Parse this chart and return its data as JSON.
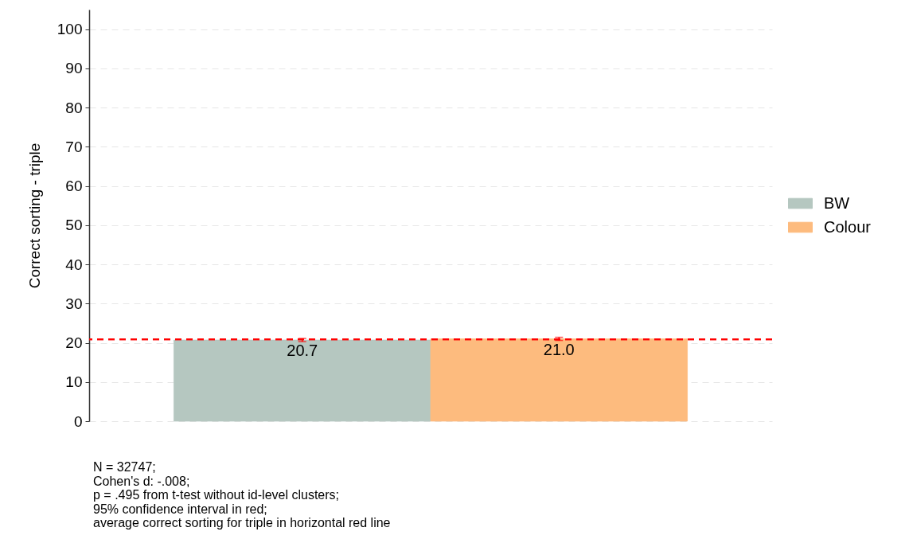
{
  "chart_data": {
    "type": "bar",
    "ylabel": "Correct sorting - triple",
    "categories": [
      null,
      null
    ],
    "series": [
      {
        "name": "BW",
        "color": "#b5c7c0",
        "values": [
          20.7,
          null
        ],
        "value_labels": [
          "20.7",
          null
        ],
        "errors": [
          [
            20.3,
            21.1
          ],
          null
        ]
      },
      {
        "name": "Colour",
        "color": "#fdbb7e",
        "values": [
          null,
          21.0
        ],
        "value_labels": [
          null,
          "21.0"
        ],
        "errors": [
          null,
          [
            20.6,
            21.4
          ]
        ]
      }
    ],
    "ylim": [
      0,
      105
    ],
    "yticks": [
      0,
      10,
      20,
      30,
      40,
      50,
      60,
      70,
      80,
      90,
      100
    ],
    "grid": "y",
    "legend": "right",
    "tick_labels": "y",
    "ref_lines": [
      {
        "axis": "y",
        "value": 20.85,
        "color": "#ff0000",
        "line_style": "dashed"
      }
    ],
    "annotations": [
      "N = 32747;",
      "Cohen's d: -.008;",
      "p = .495 from t-test without id-level clusters;",
      "95% confidence interval in red;",
      "average correct sorting for triple in horizontal red line"
    ]
  }
}
